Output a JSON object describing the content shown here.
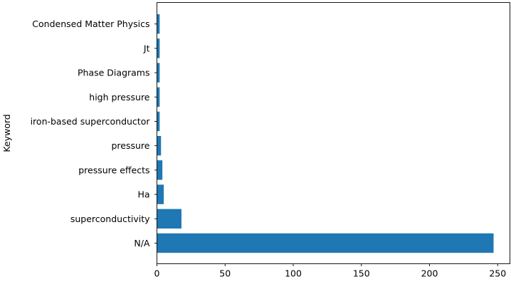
{
  "chart_data": {
    "type": "bar",
    "orientation": "horizontal",
    "categories": [
      "N/A",
      "superconductivity",
      "Ha",
      "pressure effects",
      "pressure",
      "iron-based superconductor",
      "high pressure",
      "Phase Diagrams",
      "Jt",
      "Condensed Matter Physics"
    ],
    "values": [
      247,
      18,
      5,
      4,
      3,
      2,
      2,
      2,
      2,
      2
    ],
    "title": "",
    "xlabel": "",
    "ylabel": "Keyword",
    "xlim": [
      0,
      259
    ],
    "xticks": [
      0,
      50,
      100,
      150,
      200,
      250
    ],
    "grid": false,
    "bar_color": "#1f77b4"
  }
}
